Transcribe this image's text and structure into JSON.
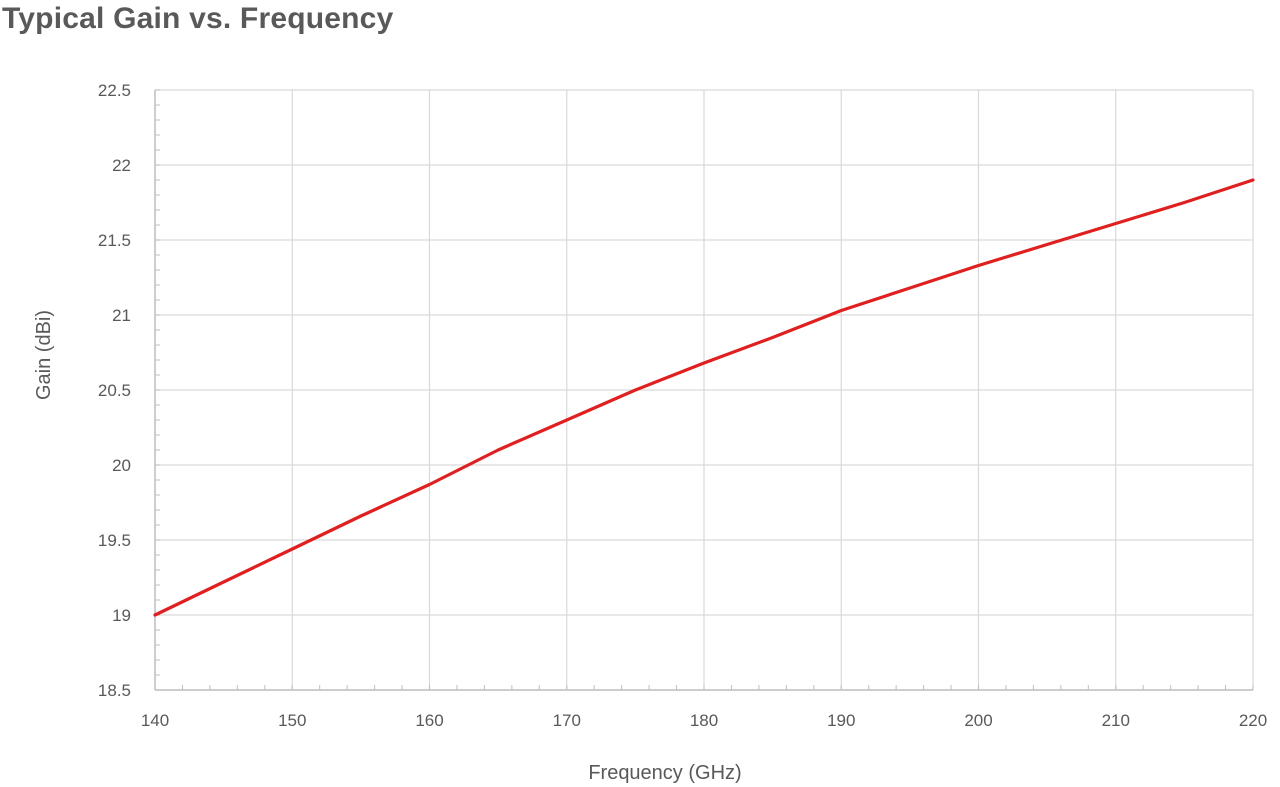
{
  "chart_data": {
    "type": "line",
    "title": "Typical Gain vs. Frequency",
    "xlabel": "Frequency (GHz)",
    "ylabel": "Gain (dBi)",
    "xlim": [
      140,
      220
    ],
    "ylim": [
      18.5,
      22.5
    ],
    "xticks": [
      "140",
      "150",
      "160",
      "170",
      "180",
      "190",
      "200",
      "210",
      "220"
    ],
    "yticks": [
      "18.5",
      "19",
      "19.5",
      "20",
      "20.5",
      "21",
      "21.5",
      "22",
      "22.5"
    ],
    "grid": true,
    "legend": "none",
    "series": [
      {
        "color": "#e02020",
        "x": [
          140,
          145,
          150,
          155,
          160,
          165,
          170,
          175,
          180,
          185,
          190,
          195,
          200,
          205,
          210,
          215,
          220
        ],
        "y": [
          19.0,
          19.22,
          19.44,
          19.66,
          19.87,
          20.1,
          20.3,
          20.5,
          20.68,
          20.85,
          21.03,
          21.18,
          21.33,
          21.47,
          21.61,
          21.75,
          21.9
        ]
      }
    ]
  }
}
